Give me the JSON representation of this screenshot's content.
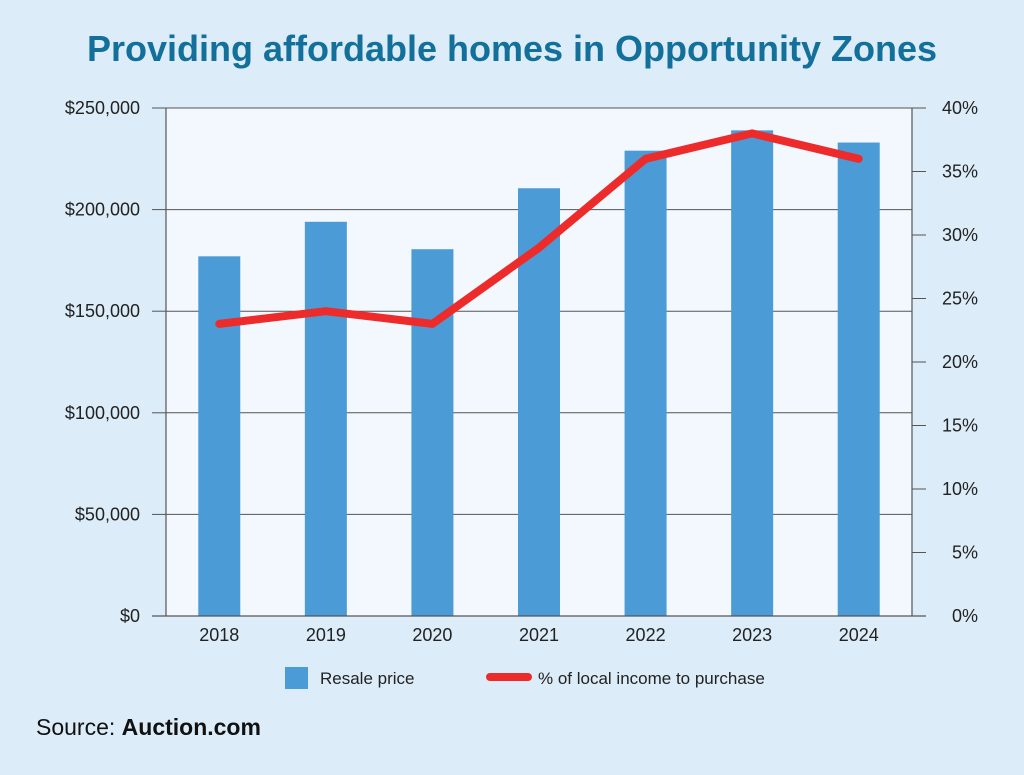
{
  "chart_data": {
    "type": "bar",
    "title": "Providing affordable homes in Opportunity Zones",
    "categories": [
      "2018",
      "2019",
      "2020",
      "2021",
      "2022",
      "2023",
      "2024"
    ],
    "series": [
      {
        "name": "Resale price",
        "type": "bar",
        "axis": "left",
        "color": "#4a9bd6",
        "values": [
          177000,
          194000,
          180500,
          210500,
          229000,
          239000,
          233000
        ]
      },
      {
        "name": "% of local income to purchase",
        "type": "line",
        "axis": "right",
        "color": "#ee2b2b",
        "values": [
          23,
          24,
          23,
          29,
          36,
          38,
          36
        ]
      }
    ],
    "y_left": {
      "min": 0,
      "max": 250000,
      "ticks": [
        0,
        50000,
        100000,
        150000,
        200000,
        250000
      ],
      "tick_labels": [
        "$0",
        "$50,000",
        "$100,000",
        "$150,000",
        "$200,000",
        "$250,000"
      ]
    },
    "y_right": {
      "min": 0,
      "max": 40,
      "ticks": [
        0,
        5,
        10,
        15,
        20,
        25,
        30,
        35,
        40
      ],
      "tick_labels": [
        "0%",
        "5%",
        "10%",
        "15%",
        "20%",
        "25%",
        "30%",
        "35%",
        "40%"
      ]
    },
    "grid": true,
    "legend_position": "bottom"
  },
  "source": {
    "label": "Source:",
    "value": "Auction.com"
  }
}
